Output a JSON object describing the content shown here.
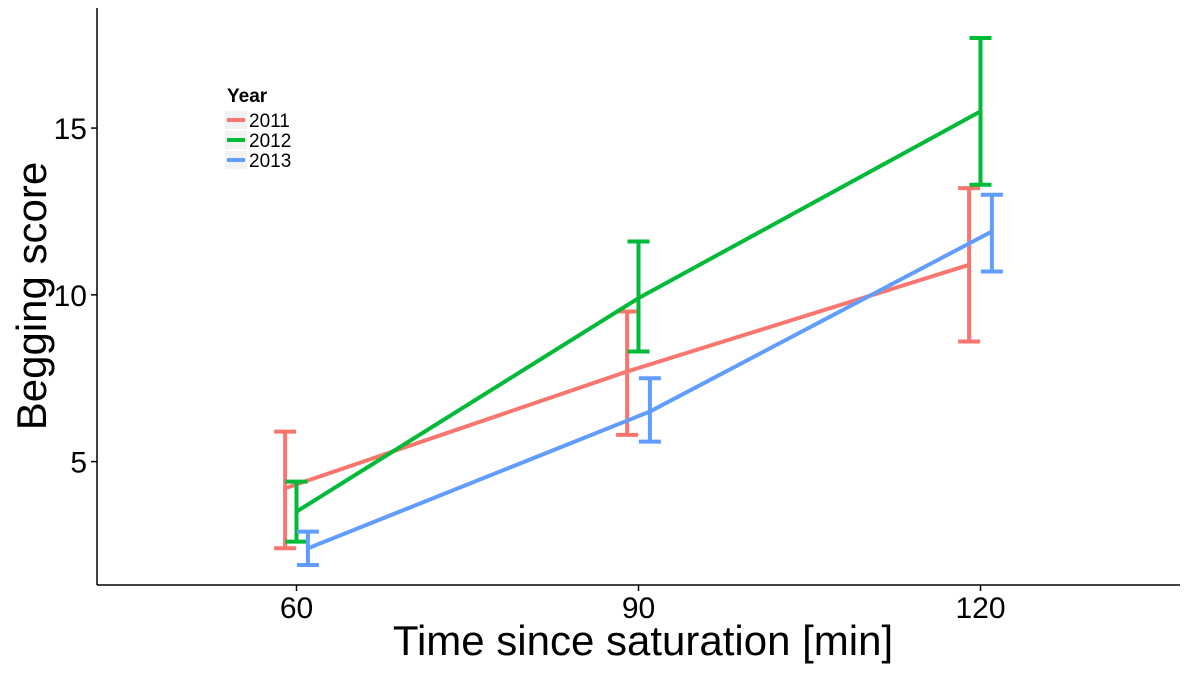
{
  "chart_data": {
    "type": "line",
    "xlabel": "Time since saturation [min]",
    "ylabel": "Begging score",
    "x": [
      60,
      90,
      120
    ],
    "xticks": [
      60,
      90,
      120
    ],
    "yticks": [
      5,
      10,
      15
    ],
    "xlim": [
      42.5,
      137.5
    ],
    "ylim": [
      1.3,
      18.6
    ],
    "grid": false,
    "legend": {
      "title": "Year",
      "placement": "top-left, inside plot"
    },
    "series": [
      {
        "name": "2011",
        "color": "#F8766D",
        "x": [
          60,
          90,
          120
        ],
        "values": [
          4.2,
          7.7,
          10.9
        ],
        "error_low": [
          2.4,
          5.8,
          8.6
        ],
        "error_high": [
          5.9,
          9.5,
          13.2
        ]
      },
      {
        "name": "2012",
        "color": "#00BA38",
        "x": [
          60,
          90,
          120
        ],
        "values": [
          3.5,
          9.9,
          15.5
        ],
        "error_low": [
          2.6,
          8.3,
          13.3
        ],
        "error_high": [
          4.4,
          11.6,
          17.7
        ]
      },
      {
        "name": "2013",
        "color": "#619CFF",
        "x": [
          60,
          90,
          120
        ],
        "values": [
          2.4,
          6.5,
          11.9
        ],
        "error_low": [
          1.9,
          5.6,
          10.7
        ],
        "error_high": [
          2.9,
          7.5,
          13.0
        ]
      }
    ]
  }
}
